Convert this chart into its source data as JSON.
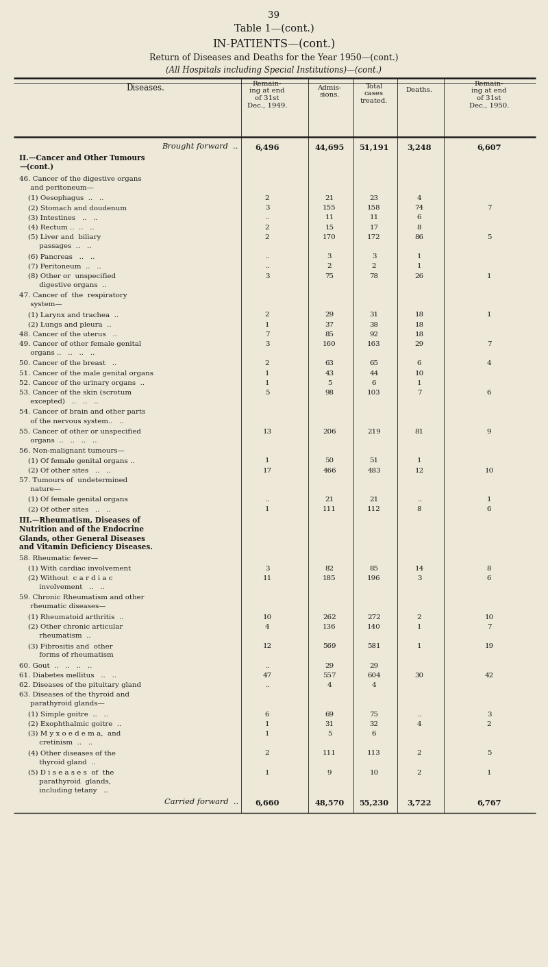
{
  "page_number": "39",
  "title1": "Table 1—(cont.)",
  "title2": "IN-PATIENTS—(cont.)",
  "title3": "Return of Diseases and Deaths for the Year 1950—(cont.)",
  "title4": "(All Hospitals including Special Institutions)—(cont.)",
  "bg_color": "#ede8d8",
  "text_color": "#1a1a1a",
  "col_header_lines": [
    [
      "Diseases.",
      "Remain-\ning at end\nof 31st\nDec., 1949.",
      "Admis-\nsions.",
      "Total\ncases\ntreated.",
      "Deaths.",
      "Remain-\ning at end\nof 31st\nDec., 1950."
    ]
  ],
  "rows": [
    {
      "label": "Brought forward  ..",
      "style": "italic",
      "v1": "6,496",
      "v2": "44,695",
      "v3": "51,191",
      "v4": "3,248",
      "v5": "6,607"
    },
    {
      "label": "II.—Cancer and Other Tumours\n—(cont.)",
      "style": "section",
      "v1": "",
      "v2": "",
      "v3": "",
      "v4": "",
      "v5": ""
    },
    {
      "label": "46. Cancer of the digestive organs\n     and peritoneum—",
      "style": "normal",
      "v1": "",
      "v2": "",
      "v3": "",
      "v4": "",
      "v5": ""
    },
    {
      "label": "    (1) Oesophagus  ..   ..",
      "style": "normal",
      "v1": "2",
      "v2": "21",
      "v3": "23",
      "v4": "4",
      "v5": ""
    },
    {
      "label": "    (2) Stomach and doudenum",
      "style": "normal",
      "v1": "3",
      "v2": "155",
      "v3": "158",
      "v4": "74",
      "v5": "7"
    },
    {
      "label": "    (3) Intestines   ..   ..",
      "style": "normal",
      "v1": "..",
      "v2": "11",
      "v3": "11",
      "v4": "6",
      "v5": ""
    },
    {
      "label": "    (4) Rectum ..  ..   ..",
      "style": "normal",
      "v1": "2",
      "v2": "15",
      "v3": "17",
      "v4": "8",
      "v5": ""
    },
    {
      "label": "    (5) Liver and  biliary\n         passages  ..   ..",
      "style": "normal",
      "v1": "2",
      "v2": "170",
      "v3": "172",
      "v4": "86",
      "v5": "5"
    },
    {
      "label": "    (6) Pancreas   ..   ..",
      "style": "normal",
      "v1": "..",
      "v2": "3",
      "v3": "3",
      "v4": "1",
      "v5": ""
    },
    {
      "label": "    (7) Peritoneum  ..   ..",
      "style": "normal",
      "v1": "..",
      "v2": "2",
      "v3": "2",
      "v4": "1",
      "v5": ""
    },
    {
      "label": "    (8) Other or  unspecified\n         digestive organs  ..",
      "style": "normal",
      "v1": "3",
      "v2": "75",
      "v3": "78",
      "v4": "26",
      "v5": "1"
    },
    {
      "label": "47. Cancer of  the  respiratory\n     system—",
      "style": "normal",
      "v1": "",
      "v2": "",
      "v3": "",
      "v4": "",
      "v5": ""
    },
    {
      "label": "    (1) Larynx and trachea  ..",
      "style": "normal",
      "v1": "2",
      "v2": "29",
      "v3": "31",
      "v4": "18",
      "v5": "1"
    },
    {
      "label": "    (2) Lungs and pleura  ..",
      "style": "normal",
      "v1": "1",
      "v2": "37",
      "v3": "38",
      "v4": "18",
      "v5": ""
    },
    {
      "label": "48. Cancer of the uterus   ..",
      "style": "normal",
      "v1": "7",
      "v2": "85",
      "v3": "92",
      "v4": "18",
      "v5": ""
    },
    {
      "label": "49. Cancer of other female genital\n     organs ..   ..   ..   ..",
      "style": "normal",
      "v1": "3",
      "v2": "160",
      "v3": "163",
      "v4": "29",
      "v5": "7"
    },
    {
      "label": "50. Cancer of the breast   ..",
      "style": "normal",
      "v1": "2",
      "v2": "63",
      "v3": "65",
      "v4": "6",
      "v5": "4"
    },
    {
      "label": "51. Cancer of the male genital organs",
      "style": "normal",
      "v1": "1",
      "v2": "43",
      "v3": "44",
      "v4": "10",
      "v5": ""
    },
    {
      "label": "52. Cancer of the urinary organs  ..",
      "style": "normal",
      "v1": "1",
      "v2": "5",
      "v3": "6",
      "v4": "1",
      "v5": ""
    },
    {
      "label": "53. Cancer of the skin (scrotum\n     excepted)   ..   ..   ..",
      "style": "normal",
      "v1": "5",
      "v2": "98",
      "v3": "103",
      "v4": "7",
      "v5": "6"
    },
    {
      "label": "54. Cancer of brain and other parts\n     of the nervous system..   ..",
      "style": "normal",
      "v1": "",
      "v2": "",
      "v3": "",
      "v4": "",
      "v5": ""
    },
    {
      "label": "55. Cancer of other or unspecified\n     organs  ..   ..   ..   ..",
      "style": "normal",
      "v1": "13",
      "v2": "206",
      "v3": "219",
      "v4": "81",
      "v5": "9"
    },
    {
      "label": "56. Non-malignant tumours—",
      "style": "normal",
      "v1": "",
      "v2": "",
      "v3": "",
      "v4": "",
      "v5": ""
    },
    {
      "label": "    (1) Of female genital organs ..",
      "style": "normal",
      "v1": "1",
      "v2": "50",
      "v3": "51",
      "v4": "1",
      "v5": ""
    },
    {
      "label": "    (2) Of other sites   ..   ..",
      "style": "normal",
      "v1": "17",
      "v2": "466",
      "v3": "483",
      "v4": "12",
      "v5": "10"
    },
    {
      "label": "57. Tumours of  undetermined\n     nature—",
      "style": "normal",
      "v1": "",
      "v2": "",
      "v3": "",
      "v4": "",
      "v5": ""
    },
    {
      "label": "    (1) Of female genital organs",
      "style": "normal",
      "v1": "..",
      "v2": "21",
      "v3": "21",
      "v4": "..",
      "v5": "1"
    },
    {
      "label": "    (2) Of other sites   ..   ..",
      "style": "normal",
      "v1": "1",
      "v2": "111",
      "v3": "112",
      "v4": "8",
      "v5": "6"
    },
    {
      "label": "III.—Rheumatism, Diseases of\nNutrition and of the Endocrine\nGlands, other General Diseases\nand Vitamin Deficiency Diseases.",
      "style": "section",
      "v1": "",
      "v2": "",
      "v3": "",
      "v4": "",
      "v5": ""
    },
    {
      "label": "58. Rheumatic fever—",
      "style": "normal",
      "v1": "",
      "v2": "",
      "v3": "",
      "v4": "",
      "v5": ""
    },
    {
      "label": "    (1) With cardiac involvement",
      "style": "normal",
      "v1": "3",
      "v2": "82",
      "v3": "85",
      "v4": "14",
      "v5": "8"
    },
    {
      "label": "    (2) Without  c a r d i a c\n         involvement   ..   ..",
      "style": "normal",
      "v1": "11",
      "v2": "185",
      "v3": "196",
      "v4": "3",
      "v5": "6"
    },
    {
      "label": "59. Chronic Rheumatism and other\n     rheumatic diseases—",
      "style": "normal",
      "v1": "",
      "v2": "",
      "v3": "",
      "v4": "",
      "v5": ""
    },
    {
      "label": "    (1) Rheumatoid arthritis  ..",
      "style": "normal",
      "v1": "10",
      "v2": "262",
      "v3": "272",
      "v4": "2",
      "v5": "10"
    },
    {
      "label": "    (2) Other chronic articular\n         rheumatism  ..",
      "style": "normal",
      "v1": "4",
      "v2": "136",
      "v3": "140",
      "v4": "1",
      "v5": "7"
    },
    {
      "label": "    (3) Fibrositis and  other\n         forms of rheumatism",
      "style": "normal",
      "v1": "12",
      "v2": "569",
      "v3": "581",
      "v4": "1",
      "v5": "19"
    },
    {
      "label": "60. Gout  ..   ..   ..   ..",
      "style": "normal",
      "v1": "..",
      "v2": "29",
      "v3": "29",
      "v4": "",
      "v5": ""
    },
    {
      "label": "61. Diabetes mellitus   ..   ..",
      "style": "normal",
      "v1": "47",
      "v2": "557",
      "v3": "604",
      "v4": "30",
      "v5": "42"
    },
    {
      "label": "62. Diseases of the pituitary gland",
      "style": "normal",
      "v1": "..",
      "v2": "4",
      "v3": "4",
      "v4": "",
      "v5": ""
    },
    {
      "label": "63. Diseases of the thyroid and\n     parathyroid glands—",
      "style": "normal",
      "v1": "",
      "v2": "",
      "v3": "",
      "v4": "",
      "v5": ""
    },
    {
      "label": "    (1) Simple goitre  ..   ..",
      "style": "normal",
      "v1": "6",
      "v2": "69",
      "v3": "75",
      "v4": "..",
      "v5": "3"
    },
    {
      "label": "    (2) Exophthalmic goitre  ..",
      "style": "normal",
      "v1": "1",
      "v2": "31",
      "v3": "32",
      "v4": "4",
      "v5": "2"
    },
    {
      "label": "    (3) M y x o e d e m a,  and\n         cretinism  ..   ..",
      "style": "normal",
      "v1": "1",
      "v2": "5",
      "v3": "6",
      "v4": "",
      "v5": ""
    },
    {
      "label": "    (4) Other diseases of the\n         thyroid gland  ..",
      "style": "normal",
      "v1": "2",
      "v2": "111",
      "v3": "113",
      "v4": "2",
      "v5": "5"
    },
    {
      "label": "    (5) D i s e a s e s  of  the\n         parathyroid  glands,\n         including tetany   ..",
      "style": "normal",
      "v1": "1",
      "v2": "9",
      "v3": "10",
      "v4": "2",
      "v5": "1"
    },
    {
      "label": "Carried forward  ..",
      "style": "italic_bottom",
      "v1": "6,660",
      "v2": "48,570",
      "v3": "55,230",
      "v4": "3,722",
      "v5": "6,767"
    }
  ]
}
